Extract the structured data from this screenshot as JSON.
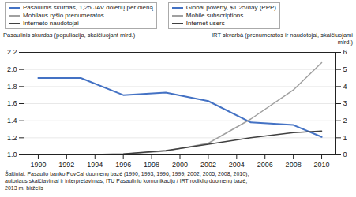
{
  "chart_data": {
    "type": "line",
    "x": [
      1990,
      1993,
      1996,
      1999,
      2002,
      2005,
      2008,
      2010
    ],
    "series": [
      {
        "name": "Pasaulinis skurdas, 1,25 JAV dolerių per dieną",
        "color": "#4472C4",
        "axis": "y",
        "values": [
          1.9,
          1.9,
          1.7,
          1.73,
          1.63,
          1.38,
          1.35,
          1.21
        ]
      },
      {
        "name": "Mobilaus ryšio prenumeratos",
        "color": "#A0A0A0",
        "axis": "y2",
        "values": [
          0.01,
          0.02,
          0.05,
          0.22,
          0.68,
          2.1,
          3.8,
          5.4
        ]
      },
      {
        "name": "Interneto naudotojai",
        "color": "#404040",
        "axis": "y2",
        "values": [
          0.005,
          0.01,
          0.06,
          0.25,
          0.62,
          1.0,
          1.3,
          1.4
        ]
      }
    ],
    "second_legend": [
      "Global poverty, $1.25/day (PPP)",
      "Mobile subscriptions",
      "Internet users"
    ],
    "ylabel": "Pasaulinis skurdas (populiacija, skaičiuojant mlrd.)",
    "y2label": "IRT skvarbà (prenumeratos ir naudotojai, skaičiuojami\nmlrd.)",
    "xlim": [
      1989,
      2011
    ],
    "xticks": [
      1990,
      1992,
      1994,
      1996,
      1998,
      2000,
      2002,
      2004,
      2006,
      2008,
      2010
    ],
    "ylim": [
      1.0,
      2.2
    ],
    "yticks": [
      {
        "value": 1.0,
        "label": "1.0"
      },
      1.2,
      1.4,
      1.6,
      1.8,
      {
        "value": 2.0,
        "label": "2.0"
      },
      2.2
    ],
    "y2lim": [
      0,
      6
    ],
    "y2ticks": [
      0,
      1,
      2,
      3,
      4,
      5,
      6
    ],
    "grid": true,
    "footnote": "Šaltiniai: Pasaulio banko PovCal duomenų bazė (1990, 1993, 1996, 1999, 2002, 2005, 2008, 2010);\nautoriaus skaičiavimai ir interpretavimas; ITU Pasaulinių komunikacijų / IRT rodiklių duomenų bazė,\n2013 m. birželis"
  }
}
